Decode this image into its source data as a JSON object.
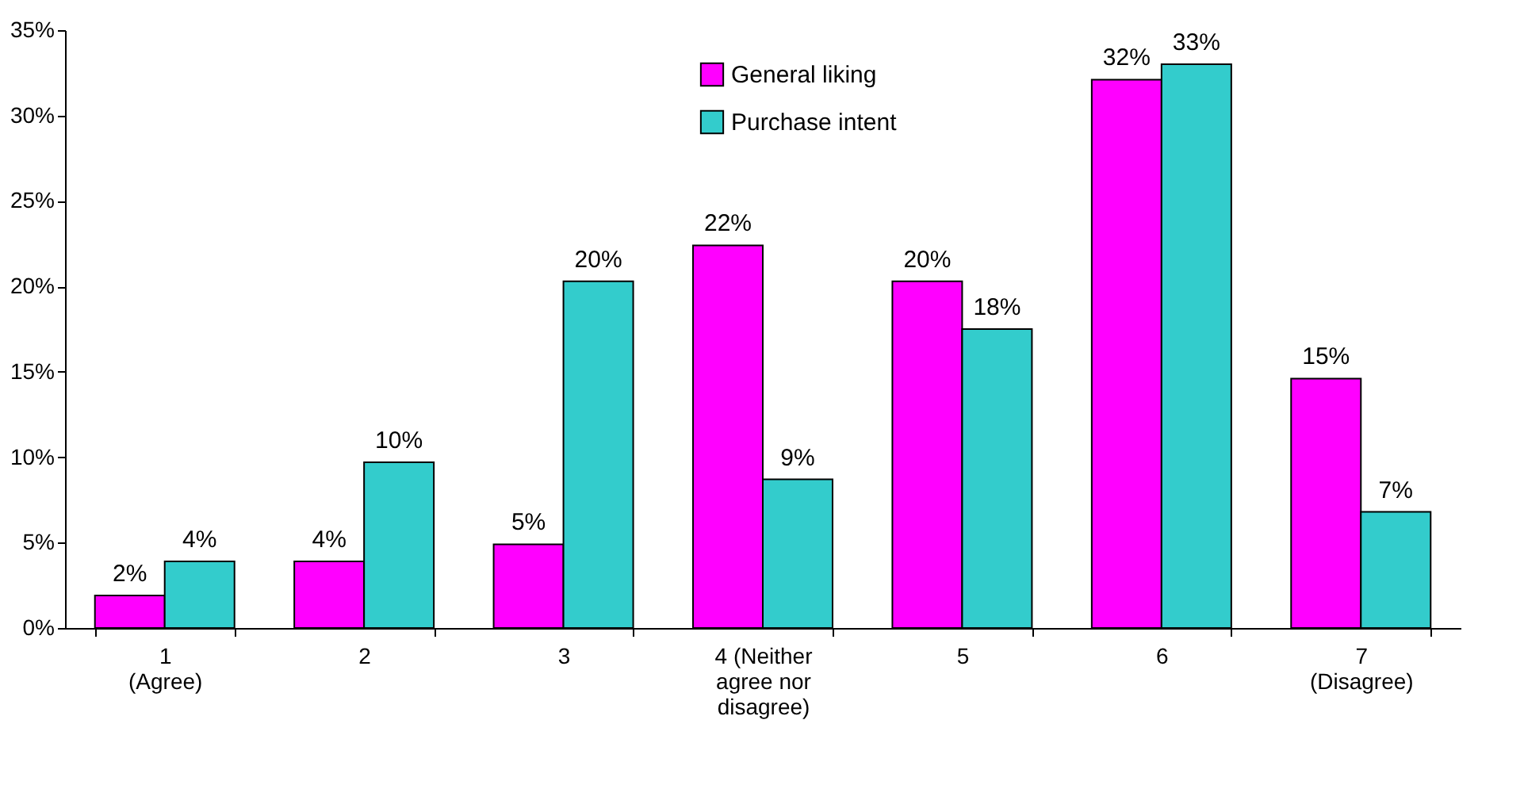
{
  "chart_data": {
    "type": "bar",
    "categories": [
      "1\n(Agree)",
      "2",
      "3",
      "4  (Neither\nagree nor\ndisagree)",
      "5",
      "6",
      "7\n(Disagree)"
    ],
    "series": [
      {
        "name": "General liking",
        "color": "#ff00ff",
        "values": [
          1.9,
          3.9,
          4.9,
          22.4,
          20.3,
          32.1,
          14.6
        ],
        "value_labels": [
          "2%",
          "4%",
          "5%",
          "22%",
          "20%",
          "32%",
          "15%"
        ]
      },
      {
        "name": "Purchase intent",
        "color": "#33cccc",
        "values": [
          3.9,
          9.7,
          20.3,
          8.7,
          17.5,
          33,
          6.8
        ],
        "value_labels": [
          "4%",
          "10%",
          "20%",
          "9%",
          "18%",
          "33%",
          "7%"
        ]
      }
    ],
    "ylim": [
      0,
      35
    ],
    "yticks": [
      {
        "value": 0,
        "label": "0%"
      },
      {
        "value": 5,
        "label": "5%"
      },
      {
        "value": 10,
        "label": "10%"
      },
      {
        "value": 15,
        "label": "15%"
      },
      {
        "value": 20,
        "label": "20%"
      },
      {
        "value": 25,
        "label": "25%"
      },
      {
        "value": 30,
        "label": "30%"
      },
      {
        "value": 35,
        "label": "35%"
      }
    ],
    "grid": false,
    "legend": "top"
  }
}
